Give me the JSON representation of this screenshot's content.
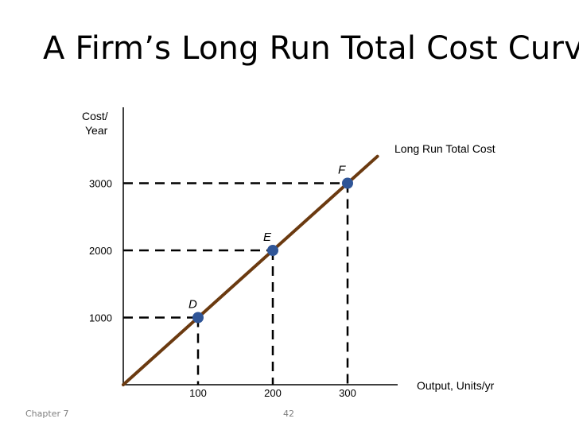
{
  "slide": {
    "title": "A Firm’s Long Run Total Cost Curve",
    "footer_left": "Chapter 7",
    "page_number": "42"
  },
  "chart_data": {
    "type": "line",
    "ylabel_line1": "Cost/",
    "ylabel_line2": "Year",
    "xlabel": "Output, Units/yr",
    "xlim": [
      0,
      340
    ],
    "ylim": [
      0,
      3550
    ],
    "xticks": [
      100,
      200,
      300
    ],
    "yticks": [
      1000,
      2000,
      3000
    ],
    "series": [
      {
        "name": "Long Run Total Cost",
        "x": [
          0,
          340
        ],
        "y": [
          0,
          3400
        ],
        "color": "#6b3a10"
      }
    ],
    "points": [
      {
        "label": "D",
        "x": 100,
        "y": 1000
      },
      {
        "label": "E",
        "x": 200,
        "y": 2000
      },
      {
        "label": "F",
        "x": 300,
        "y": 3000
      }
    ],
    "point_color": "#2f5597",
    "guide_lines": "dashed"
  }
}
